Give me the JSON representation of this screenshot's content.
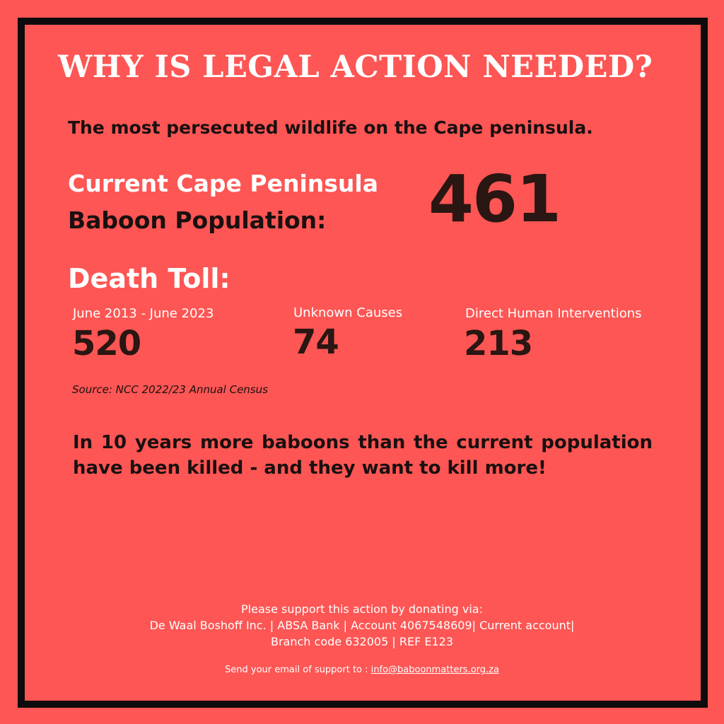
{
  "title": "WHY IS LEGAL ACTION NEEDED?",
  "subtitle": "The most persecuted wildlife on the Cape peninsula.",
  "population": {
    "label_line1": "Current Cape Peninsula",
    "label_line2": "Baboon Population:",
    "value": "461"
  },
  "death_toll": {
    "heading": "Death Toll:",
    "stats": [
      {
        "label": "June 2013 - June 2023",
        "value": "520"
      },
      {
        "label": "Unknown Causes",
        "value": "74"
      },
      {
        "label": "Direct Human Interventions",
        "value": "213"
      }
    ],
    "source": "Source: NCC 2022/23 Annual Census"
  },
  "statement": "In 10 years more baboons than the current population have been killed - and they want to kill more!",
  "donation": {
    "line1": "Please support this action by donating via:",
    "line2": "De Waal Boshoff Inc. | ABSA Bank | Account 4067548609| Current account|",
    "line3": "Branch code 632005 | REF E123"
  },
  "contact": {
    "prefix": "Send your email of support to : ",
    "email": "info@baboonmatters.org.za"
  },
  "colors": {
    "background": "#fd5654",
    "border": "#0d0b0b",
    "dark_text": "#1a1010",
    "number_text": "#2a1612",
    "light_text": "#ffffff"
  }
}
